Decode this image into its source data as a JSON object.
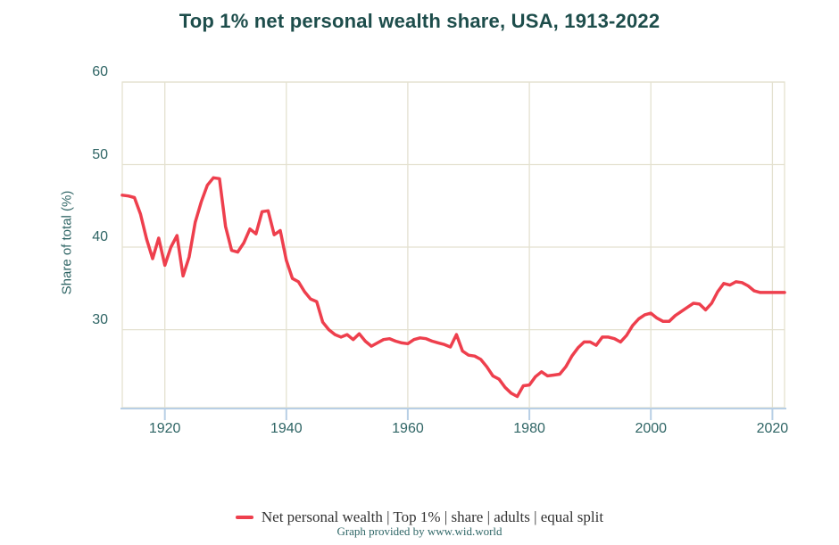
{
  "title": "Top 1% net personal wealth share, USA, 1913-2022",
  "y_axis": {
    "label": "Share of total (%)",
    "ticks": [
      60,
      50,
      40,
      30
    ]
  },
  "x_axis": {
    "ticks": [
      1920,
      1940,
      1960,
      1980,
      2000,
      2020
    ]
  },
  "legend": {
    "label": "Net personal wealth | Top 1% | share | adults | equal split"
  },
  "footer": "Graph provided by www.wid.world",
  "colors": {
    "line": "#ee3f4d",
    "grid": "#e4e1d0",
    "axis_blue": "#b8cfe5",
    "tick_text": "#2f6565",
    "title_text": "#1d4d4b",
    "legend_text": "#333333"
  },
  "chart_data": {
    "type": "line",
    "title": "Top 1% net personal wealth share, USA, 1913-2022",
    "xlabel": "",
    "ylabel": "Share of total (%)",
    "xlim": [
      1913,
      2022
    ],
    "ylim": [
      20.55,
      60
    ],
    "grid": true,
    "legend_position": "bottom",
    "series": [
      {
        "name": "Net personal wealth | Top 1% | share | adults | equal split",
        "color": "#ee3f4d",
        "x": [
          1913,
          1914,
          1915,
          1916,
          1917,
          1918,
          1919,
          1920,
          1921,
          1922,
          1923,
          1924,
          1925,
          1926,
          1927,
          1928,
          1929,
          1930,
          1931,
          1932,
          1933,
          1934,
          1935,
          1936,
          1937,
          1938,
          1939,
          1940,
          1941,
          1942,
          1943,
          1944,
          1945,
          1946,
          1947,
          1948,
          1949,
          1950,
          1951,
          1952,
          1953,
          1954,
          1955,
          1956,
          1957,
          1958,
          1959,
          1960,
          1961,
          1962,
          1963,
          1964,
          1965,
          1966,
          1967,
          1968,
          1969,
          1970,
          1971,
          1972,
          1973,
          1974,
          1975,
          1976,
          1977,
          1978,
          1979,
          1980,
          1981,
          1982,
          1983,
          1984,
          1985,
          1986,
          1987,
          1988,
          1989,
          1990,
          1991,
          1992,
          1993,
          1994,
          1995,
          1996,
          1997,
          1998,
          1999,
          2000,
          2001,
          2002,
          2003,
          2004,
          2005,
          2006,
          2007,
          2008,
          2009,
          2010,
          2011,
          2012,
          2013,
          2014,
          2015,
          2016,
          2017,
          2018,
          2019,
          2020,
          2021,
          2022
        ],
        "values": [
          46.3,
          46.2,
          46.0,
          44.0,
          41.0,
          38.6,
          41.1,
          37.8,
          40.0,
          41.4,
          36.5,
          38.8,
          43.0,
          45.5,
          47.5,
          48.4,
          48.3,
          42.5,
          39.6,
          39.4,
          40.5,
          42.2,
          41.6,
          44.3,
          44.4,
          41.5,
          42.0,
          38.4,
          36.2,
          35.8,
          34.6,
          33.7,
          33.4,
          30.9,
          30.0,
          29.4,
          29.1,
          29.4,
          28.8,
          29.5,
          28.6,
          28.0,
          28.4,
          28.8,
          28.9,
          28.6,
          28.4,
          28.3,
          28.8,
          29.0,
          28.9,
          28.6,
          28.4,
          28.2,
          27.9,
          29.4,
          27.4,
          26.9,
          26.8,
          26.4,
          25.5,
          24.4,
          24.0,
          23.0,
          22.3,
          21.9,
          23.2,
          23.3,
          24.3,
          24.9,
          24.4,
          24.5,
          24.6,
          25.5,
          26.8,
          27.8,
          28.5,
          28.5,
          28.1,
          29.1,
          29.1,
          28.9,
          28.5,
          29.3,
          30.5,
          31.3,
          31.8,
          32.0,
          31.4,
          31.0,
          31.0,
          31.7,
          32.2,
          32.7,
          33.2,
          33.1,
          32.4,
          33.2,
          34.6,
          35.6,
          35.4,
          35.8,
          35.7,
          35.3,
          34.7,
          34.5,
          34.5,
          34.5,
          34.5,
          34.5
        ]
      }
    ]
  }
}
